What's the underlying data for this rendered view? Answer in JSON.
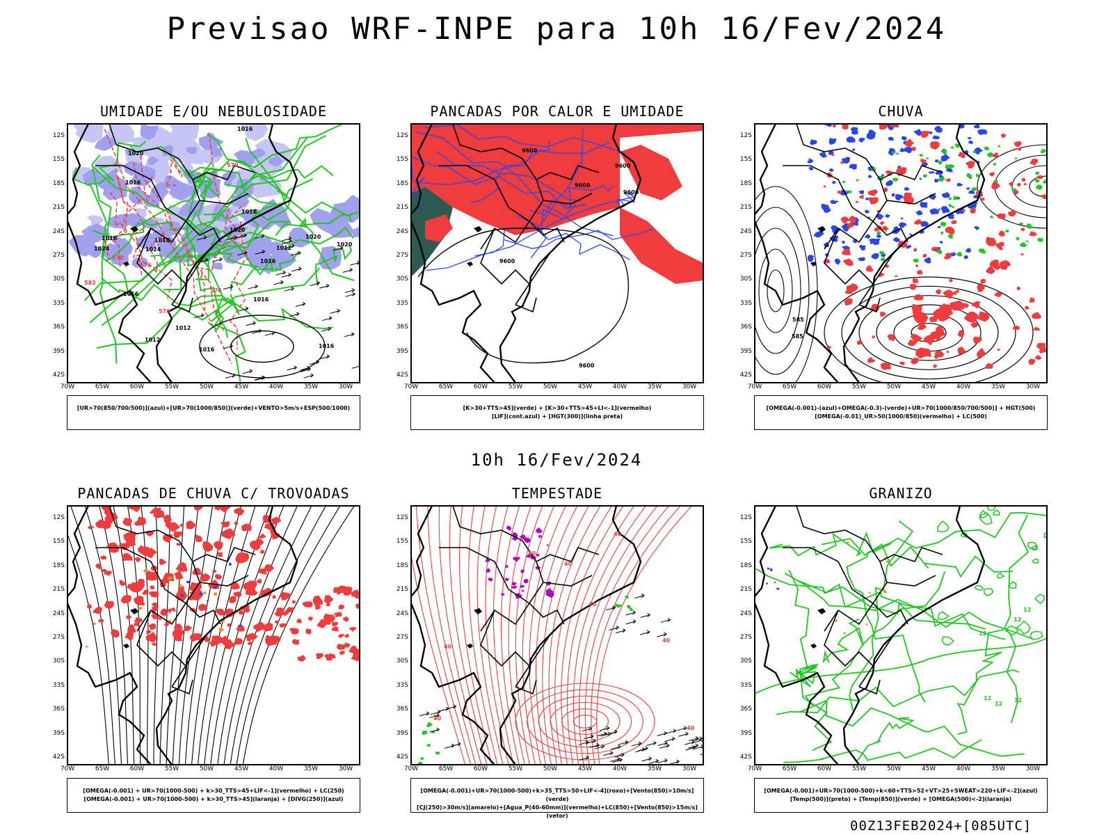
{
  "title": "Previsao WRF-INPE  para 10h 16/Fev/2024",
  "subtitle": "10h 16/Fev/2024",
  "run_label": "00Z13FEB2024+[085UTC]",
  "lat_ticks": [
    "12S",
    "15S",
    "18S",
    "21S",
    "24S",
    "27S",
    "30S",
    "33S",
    "36S",
    "39S",
    "42S"
  ],
  "lon_ticks": [
    "70W",
    "65W",
    "60W",
    "55W",
    "50W",
    "45W",
    "40W",
    "35W",
    "30W"
  ],
  "panels": [
    {
      "title": "UMIDADE E/OU NEBULOSIDADE",
      "legend": [
        "[UR>70(850/700/500)](azul)+[UR>70(1000/850)](verde)+VENTO>5m/s+ESP(500/1000)"
      ],
      "contour_labels": [
        "1016",
        "1016",
        "1016",
        "1016",
        "1012",
        "1012",
        "1016",
        "1016",
        "1020",
        "1020",
        "1016",
        "1018",
        "1020",
        "1012",
        "1018",
        "1020",
        "1024",
        "1024",
        "1016",
        "576",
        "576",
        "570",
        "576",
        "570",
        "582"
      ]
    },
    {
      "title": "PANCADAS POR CALOR E UMIDADE",
      "legend": [
        "[K>30+TTS>45](verde) + [K>30+TTS>45+LI<-1](vermelho)",
        "[LIF](cont.azul) + [HGT(300)](linha preta)"
      ],
      "contour_labels": [
        "9600",
        "9600",
        "9600",
        "9600",
        "9600",
        "9600"
      ]
    },
    {
      "title": "CHUVA",
      "legend": [
        "[OMEGA(-0.001)-(azul)+OMEGA(-0.3)-(verde)+UR>70(1000/850/700/500)] + HGT(500)",
        "[OMEGA(-0.01)_UR>50(1000/850)(vermelho) + LC(500)"
      ],
      "contour_labels": [
        "585",
        "585"
      ]
    },
    {
      "title": "PANCADAS DE CHUVA C/ TROVOADAS",
      "legend": [
        "[OMEGA(-0.001) + UR>70(1000-500) + k>30_TTS>45+LIF<-1](vermelho) + LC(250)",
        "[OMEGA(-0.001) + UR>70(1000-500) + k>30_TTS>45](laranja) + [DIVG(250)](azul)"
      ],
      "contour_labels": []
    },
    {
      "title": "TEMPESTADE",
      "legend": [
        "[OMEGA(-0.001)+UR>70(1000-500)+k>35_TTS>50+LIF<-4](roxo)+[Vento(850)>10m/s](verde)",
        "[CJ(250)>30m/s](amarelo)+[Agua_P(40-60mm)](vermelho)+LC(850)+[Vento(850)>15m/s](vetor)"
      ],
      "contour_labels": [
        "40",
        "40",
        "40",
        "40",
        "40",
        "40",
        "40",
        "40"
      ]
    },
    {
      "title": "GRANIZO",
      "legend": [
        "[OMEGA(-0.001)+UR>70(1000-500)+k<60+TTS>52+VT>25+SWEAT>220+LIF<-2](azul)",
        "[Temp(500)](preto) + [Temp(850)](verde) + [OMEGA(500)<-2](laranja)"
      ],
      "contour_labels": [
        "12",
        "12",
        "12",
        "12",
        "12",
        "12"
      ]
    }
  ],
  "colors": {
    "red": "#f03c3c",
    "green": "#1ec81e",
    "blue": "#2846f0",
    "lavender": "#a0a0ee",
    "lavender_light": "#c6c6f4",
    "teal": "#2d5a50",
    "orange": "#f08c28",
    "purple": "#b400c8",
    "black": "#000000"
  }
}
